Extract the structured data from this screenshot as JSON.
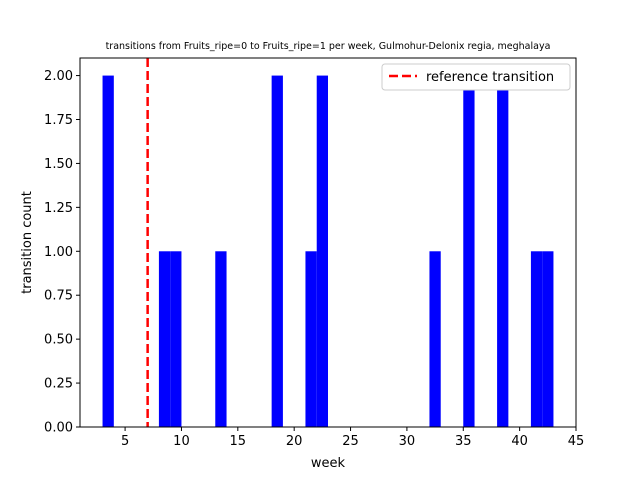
{
  "chart_data": {
    "type": "bar",
    "title": "transitions from Fruits_ripe=0 to Fruits_ripe=1 per week, Gulmohur-Delonix regia, meghalaya",
    "xlabel": "week",
    "ylabel": "transition count",
    "xlim": [
      1,
      45
    ],
    "ylim": [
      0,
      2.1
    ],
    "xticks": [
      5,
      10,
      15,
      20,
      25,
      30,
      35,
      40,
      45
    ],
    "yticks": [
      "0.00",
      "0.25",
      "0.50",
      "0.75",
      "1.00",
      "1.25",
      "1.50",
      "1.75",
      "2.00"
    ],
    "bin_width": 1,
    "bars": [
      {
        "x_start": 3,
        "value": 2
      },
      {
        "x_start": 8,
        "value": 1
      },
      {
        "x_start": 9,
        "value": 1
      },
      {
        "x_start": 13,
        "value": 1
      },
      {
        "x_start": 18,
        "value": 2
      },
      {
        "x_start": 21,
        "value": 1
      },
      {
        "x_start": 22,
        "value": 2
      },
      {
        "x_start": 32,
        "value": 1
      },
      {
        "x_start": 35,
        "value": 2
      },
      {
        "x_start": 38,
        "value": 2
      },
      {
        "x_start": 41,
        "value": 1
      },
      {
        "x_start": 42,
        "value": 1
      }
    ],
    "bar_color": "#0000ff",
    "reference_line": {
      "x": 7,
      "label": "reference transition",
      "color": "#ff0000",
      "style": "dashed"
    },
    "legend": {
      "placement": "top-right",
      "entries": [
        "reference transition"
      ]
    },
    "grid": false
  }
}
